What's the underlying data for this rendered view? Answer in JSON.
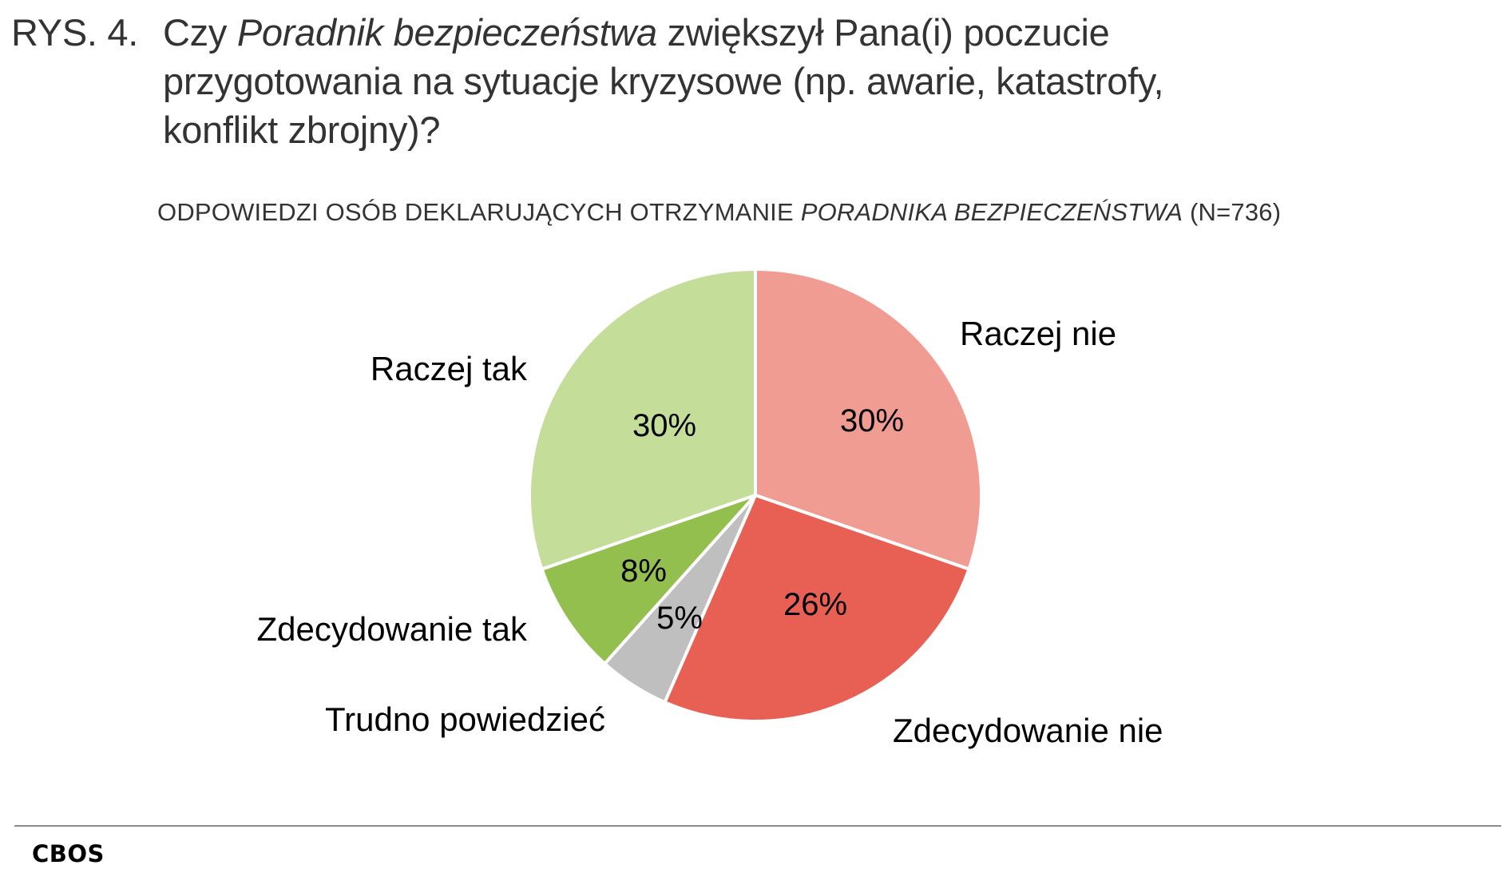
{
  "figure": {
    "prefix": "RYS. 4.",
    "title_part1": "Czy ",
    "title_italic": "Poradnik bezpieczeństwa",
    "title_part2": " zwiększył Pana(i) poczucie",
    "title_line2": "przygotowania na sytuacje kryzysowe (np. awarie, katastrofy,",
    "title_line3": "konflikt zbrojny)?",
    "subtitle_part1": "ODPOWIEDZI OSÓB DEKLARUJĄCYCH OTRZYMANIE ",
    "subtitle_italic": "PORADNIKA BEZPIECZEŃSTWA",
    "subtitle_part2": " (N=736)",
    "source": "CBOS"
  },
  "chart_data": {
    "type": "pie",
    "title": "RYS. 4. Czy Poradnik bezpieczeństwa zwiększył Pana(i) poczucie przygotowania na sytuacje kryzysowe (np. awarie, katastrofy, konflikt zbrojny)?",
    "subtitle": "ODPOWIEDZI OSÓB DEKLARUJĄCYCH OTRZYMANIE PORADNIKA BEZPIECZEŃSTWA (N=736)",
    "categories": [
      "Raczej nie",
      "Zdecydowanie nie",
      "Trudno powiedzieć",
      "Zdecydowanie tak",
      "Raczej tak"
    ],
    "values": [
      30,
      26,
      5,
      8,
      30
    ],
    "value_labels": [
      "30%",
      "26%",
      "5%",
      "8%",
      "30%"
    ],
    "colors": [
      "#f09c92",
      "#e86054",
      "#bfbfbf",
      "#93bf4f",
      "#c4de9a"
    ],
    "start_angle": "top (12 o'clock), clockwise",
    "legend": "none (direct labels)",
    "source": "CBOS"
  }
}
